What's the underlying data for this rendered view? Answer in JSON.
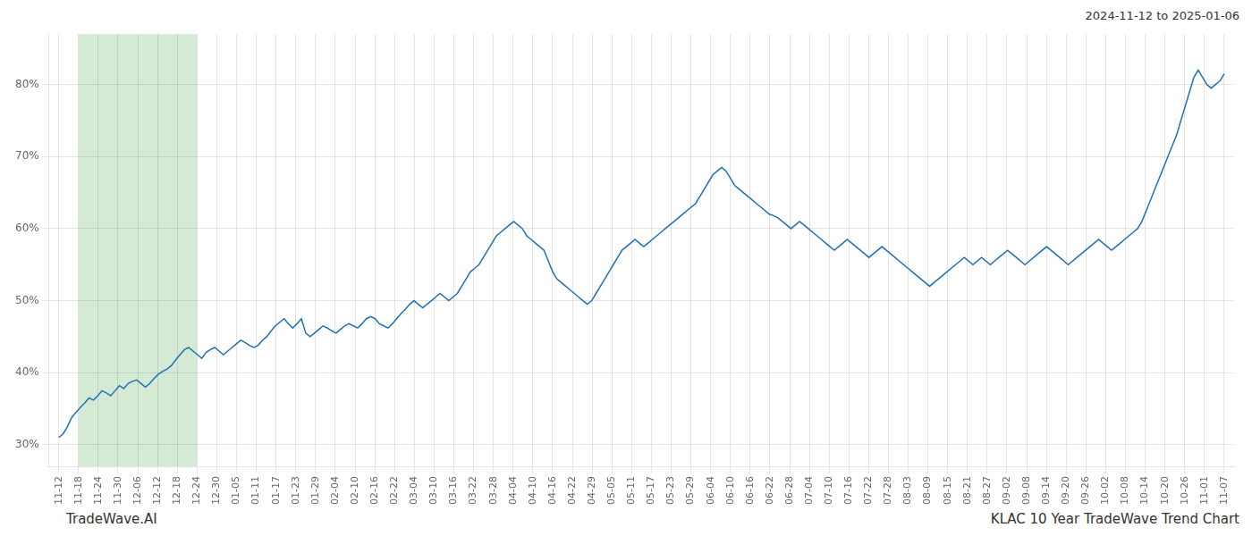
{
  "chart_data": {
    "type": "line",
    "annotations": [
      "2024-11-12 to 2025-01-06",
      "TradeWave.AI",
      "KLAC 10 Year TradeWave Trend Chart"
    ],
    "color": "#2070b4",
    "grid": true,
    "shaded_region": {
      "x": [
        1,
        7
      ],
      "color": "#d5ead5"
    },
    "xlim": [
      -0.5,
      59.5
    ],
    "xticks": [
      {
        "value": 0,
        "label": "11-12"
      },
      {
        "value": 1,
        "label": "11-18"
      },
      {
        "value": 2,
        "label": "11-24"
      },
      {
        "value": 3,
        "label": "11-30"
      },
      {
        "value": 4,
        "label": "12-06"
      },
      {
        "value": 5,
        "label": "12-12"
      },
      {
        "value": 6,
        "label": "12-18"
      },
      {
        "value": 7,
        "label": "12-24"
      },
      {
        "value": 8,
        "label": "12-30"
      },
      {
        "value": 9,
        "label": "01-05"
      },
      {
        "value": 10,
        "label": "01-11"
      },
      {
        "value": 11,
        "label": "01-17"
      },
      {
        "value": 12,
        "label": "01-23"
      },
      {
        "value": 13,
        "label": "01-29"
      },
      {
        "value": 14,
        "label": "02-04"
      },
      {
        "value": 15,
        "label": "02-10"
      },
      {
        "value": 16,
        "label": "02-16"
      },
      {
        "value": 17,
        "label": "02-22"
      },
      {
        "value": 18,
        "label": "03-04"
      },
      {
        "value": 19,
        "label": "03-10"
      },
      {
        "value": 20,
        "label": "03-16"
      },
      {
        "value": 21,
        "label": "03-22"
      },
      {
        "value": 22,
        "label": "03-28"
      },
      {
        "value": 23,
        "label": "04-04"
      },
      {
        "value": 24,
        "label": "04-10"
      },
      {
        "value": 25,
        "label": "04-16"
      },
      {
        "value": 26,
        "label": "04-22"
      },
      {
        "value": 27,
        "label": "04-29"
      },
      {
        "value": 28,
        "label": "05-05"
      },
      {
        "value": 29,
        "label": "05-11"
      },
      {
        "value": 30,
        "label": "05-17"
      },
      {
        "value": 31,
        "label": "05-23"
      },
      {
        "value": 32,
        "label": "05-29"
      },
      {
        "value": 33,
        "label": "06-04"
      },
      {
        "value": 34,
        "label": "06-10"
      },
      {
        "value": 35,
        "label": "06-16"
      },
      {
        "value": 36,
        "label": "06-22"
      },
      {
        "value": 37,
        "label": "06-28"
      },
      {
        "value": 38,
        "label": "07-04"
      },
      {
        "value": 39,
        "label": "07-10"
      },
      {
        "value": 40,
        "label": "07-16"
      },
      {
        "value": 41,
        "label": "07-22"
      },
      {
        "value": 42,
        "label": "07-28"
      },
      {
        "value": 43,
        "label": "08-03"
      },
      {
        "value": 44,
        "label": "08-09"
      },
      {
        "value": 45,
        "label": "08-15"
      },
      {
        "value": 46,
        "label": "08-21"
      },
      {
        "value": 47,
        "label": "08-27"
      },
      {
        "value": 48,
        "label": "09-02"
      },
      {
        "value": 49,
        "label": "09-08"
      },
      {
        "value": 50,
        "label": "09-14"
      },
      {
        "value": 51,
        "label": "09-20"
      },
      {
        "value": 52,
        "label": "09-26"
      },
      {
        "value": 53,
        "label": "10-02"
      },
      {
        "value": 54,
        "label": "10-08"
      },
      {
        "value": 55,
        "label": "10-14"
      },
      {
        "value": 56,
        "label": "10-20"
      },
      {
        "value": 57,
        "label": "10-26"
      },
      {
        "value": 58,
        "label": "11-01"
      },
      {
        "value": 59,
        "label": "11-07"
      }
    ],
    "ylim": [
      27,
      87
    ],
    "yticks": [
      {
        "value": 30,
        "label": "30%"
      },
      {
        "value": 40,
        "label": "40%"
      },
      {
        "value": 50,
        "label": "50%"
      },
      {
        "value": 60,
        "label": "60%"
      },
      {
        "value": 70,
        "label": "70%"
      },
      {
        "value": 80,
        "label": "80%"
      }
    ],
    "x": [
      0,
      0.2193,
      0.4387,
      0.658,
      0.8773,
      1.0967,
      1.316,
      1.5353,
      1.7546,
      1.974,
      2.1933,
      2.4126,
      2.632,
      2.8513,
      3.0706,
      3.29,
      3.5093,
      3.7286,
      3.948,
      4.1673,
      4.3866,
      4.6059,
      4.8253,
      5.0446,
      5.2639,
      5.4833,
      5.7026,
      5.9219,
      6.1413,
      6.3606,
      6.5799,
      6.7993,
      7.0186,
      7.2379,
      7.4572,
      7.6766,
      7.8959,
      8.1152,
      8.3346,
      8.5539,
      8.7732,
      8.9926,
      9.2119,
      9.4312,
      9.6506,
      9.8699,
      10.0892,
      10.3086,
      10.5279,
      10.7472,
      10.9665,
      11.1859,
      11.4052,
      11.6245,
      11.8439,
      12.0632,
      12.2825,
      12.5019,
      12.7212,
      12.9405,
      13.1599,
      13.3792,
      13.5985,
      13.8178,
      14.0372,
      14.2565,
      14.4758,
      14.6952,
      14.9145,
      15.1338,
      15.3532,
      15.5725,
      15.7918,
      16.0112,
      16.2305,
      16.4498,
      16.6691,
      16.8885,
      17.1078,
      17.3271,
      17.5465,
      17.7658,
      17.9851,
      18.2045,
      18.4238,
      18.6431,
      18.8625,
      19.0818,
      19.3011,
      19.5204,
      19.7398,
      19.9591,
      20.1784,
      20.3978,
      20.6171,
      20.8364,
      21.0558,
      21.2751,
      21.4944,
      21.7138,
      21.9331,
      22.1524,
      22.3717,
      22.5911,
      22.8104,
      23.0297,
      23.2491,
      23.4684,
      23.6877,
      23.9071,
      24.1264,
      24.3457,
      24.5651,
      24.7844,
      25.0037,
      25.223,
      25.4424,
      25.6617,
      25.881,
      26.1004,
      26.3197,
      26.539,
      26.7584,
      26.9777,
      27.197,
      27.4164,
      27.6357,
      27.855,
      28.0743,
      28.2937,
      28.513,
      28.7323,
      28.9517,
      29.171,
      29.3903,
      29.6097,
      29.829,
      30.0483,
      30.2677,
      30.487,
      30.7063,
      30.9257,
      31.145,
      31.3643,
      31.5836,
      31.803,
      32.0223,
      32.2416,
      32.461,
      32.6803,
      32.8996,
      33.119,
      33.3383,
      33.5576,
      33.777,
      33.9963,
      34.2156,
      34.4349,
      34.6543,
      34.8736,
      35.0929,
      35.3123,
      35.5316,
      35.7509,
      35.9703,
      36.1896,
      36.4089,
      36.6283,
      36.8476,
      37.0669,
      37.2862,
      37.5056,
      37.7249,
      37.9442,
      38.1636,
      38.3829,
      38.6022,
      38.8216,
      39.0409,
      39.2602,
      39.4796,
      39.6989,
      39.9182,
      40.1375,
      40.3569,
      40.5762,
      40.7955,
      41.0149,
      41.2342,
      41.4535,
      41.6729,
      41.8922,
      42.1115,
      42.3309,
      42.5502,
      42.7695,
      42.9888,
      43.2082,
      43.4275,
      43.6468,
      43.8662,
      44.0855,
      44.3048,
      44.5242,
      44.7435,
      44.9628,
      45.1822,
      45.4015,
      45.6208,
      45.8401,
      46.0595,
      46.2788,
      46.4981,
      46.7175,
      46.9368,
      47.1561,
      47.3755,
      47.5948,
      47.8141,
      48.0335,
      48.2528,
      48.4721,
      48.6914,
      48.9108,
      49.1301,
      49.3494,
      49.5688,
      49.7881,
      50.0074,
      50.2268,
      50.4461,
      50.6654,
      50.8848,
      51.1041,
      51.3234,
      51.5428,
      51.7621,
      51.9814,
      52.2007,
      52.4201,
      52.6394,
      52.8587,
      53.0781,
      53.2974,
      53.5167,
      53.7361,
      53.9554,
      54.1747,
      54.3941,
      54.6134,
      54.8327,
      55.052,
      55.2714,
      55.4907,
      55.71,
      55.9294,
      56.1487,
      56.368,
      56.5874,
      56.8067,
      57.026,
      57.2454,
      57.4647,
      57.684,
      57.9033,
      58.1227,
      58.342,
      58.5613,
      58.7807,
      59
    ],
    "values": [
      31.0,
      31.5,
      32.5,
      33.8,
      34.5,
      35.2,
      35.8,
      36.5,
      36.2,
      36.8,
      37.5,
      37.2,
      36.8,
      37.5,
      38.2,
      37.8,
      38.5,
      38.8,
      39.0,
      38.5,
      38.0,
      38.5,
      39.2,
      39.8,
      40.2,
      40.5,
      41.0,
      41.8,
      42.5,
      43.2,
      43.5,
      43.0,
      42.5,
      42.0,
      42.8,
      43.2,
      43.5,
      43.0,
      42.5,
      43.0,
      43.5,
      44.0,
      44.5,
      44.2,
      43.8,
      43.5,
      43.8,
      44.5,
      45.0,
      45.8,
      46.5,
      47.0,
      47.5,
      46.8,
      46.2,
      46.8,
      47.5,
      45.5,
      45.0,
      45.5,
      46.0,
      46.5,
      46.2,
      45.8,
      45.5,
      46.0,
      46.5,
      46.8,
      46.5,
      46.2,
      46.8,
      47.5,
      47.8,
      47.5,
      46.8,
      46.5,
      46.2,
      46.8,
      47.5,
      48.2,
      48.8,
      49.5,
      50.0,
      49.5,
      49.0,
      49.5,
      50.0,
      50.5,
      51.0,
      50.5,
      50.0,
      50.5,
      51.0,
      52.0,
      53.0,
      54.0,
      54.5,
      55.0,
      56.0,
      57.0,
      58.0,
      59.0,
      59.5,
      60.0,
      60.5,
      61.0,
      60.5,
      60.0,
      59.0,
      58.5,
      58.0,
      57.5,
      57.0,
      55.5,
      54.0,
      53.0,
      52.5,
      52.0,
      51.5,
      51.0,
      50.5,
      50.0,
      49.5,
      50.0,
      51.0,
      52.0,
      53.0,
      54.0,
      55.0,
      56.0,
      57.0,
      57.5,
      58.0,
      58.5,
      58.0,
      57.5,
      58.0,
      58.5,
      59.0,
      59.5,
      60.0,
      60.5,
      61.0,
      61.5,
      62.0,
      62.5,
      63.0,
      63.5,
      64.5,
      65.5,
      66.5,
      67.5,
      68.0,
      68.5,
      68.0,
      67.0,
      66.0,
      65.5,
      65.0,
      64.5,
      64.0,
      63.5,
      63.0,
      62.5,
      62.0,
      61.8,
      61.5,
      61.0,
      60.5,
      60.0,
      60.5,
      61.0,
      60.5,
      60.0,
      59.5,
      59.0,
      58.5,
      58.0,
      57.5,
      57.0,
      57.5,
      58.0,
      58.5,
      58.0,
      57.5,
      57.0,
      56.5,
      56.0,
      56.5,
      57.0,
      57.5,
      57.0,
      56.5,
      56.0,
      55.5,
      55.0,
      54.5,
      54.0,
      53.5,
      53.0,
      52.5,
      52.0,
      52.5,
      53.0,
      53.5,
      54.0,
      54.5,
      55.0,
      55.5,
      56.0,
      55.5,
      55.0,
      55.5,
      56.0,
      55.5,
      55.0,
      55.5,
      56.0,
      56.5,
      57.0,
      56.5,
      56.0,
      55.5,
      55.0,
      55.5,
      56.0,
      56.5,
      57.0,
      57.5,
      57.0,
      56.5,
      56.0,
      55.5,
      55.0,
      55.5,
      56.0,
      56.5,
      57.0,
      57.5,
      58.0,
      58.5,
      58.0,
      57.5,
      57.0,
      57.5,
      58.0,
      58.5,
      59.0,
      59.5,
      60.0,
      61.0,
      62.5,
      64.0,
      65.5,
      67.0,
      68.5,
      70.0,
      71.5,
      73.0,
      75.0,
      77.0,
      79.0,
      81.0,
      82.0,
      81.0,
      80.0,
      79.5,
      80.0,
      80.5,
      81.5
    ]
  }
}
